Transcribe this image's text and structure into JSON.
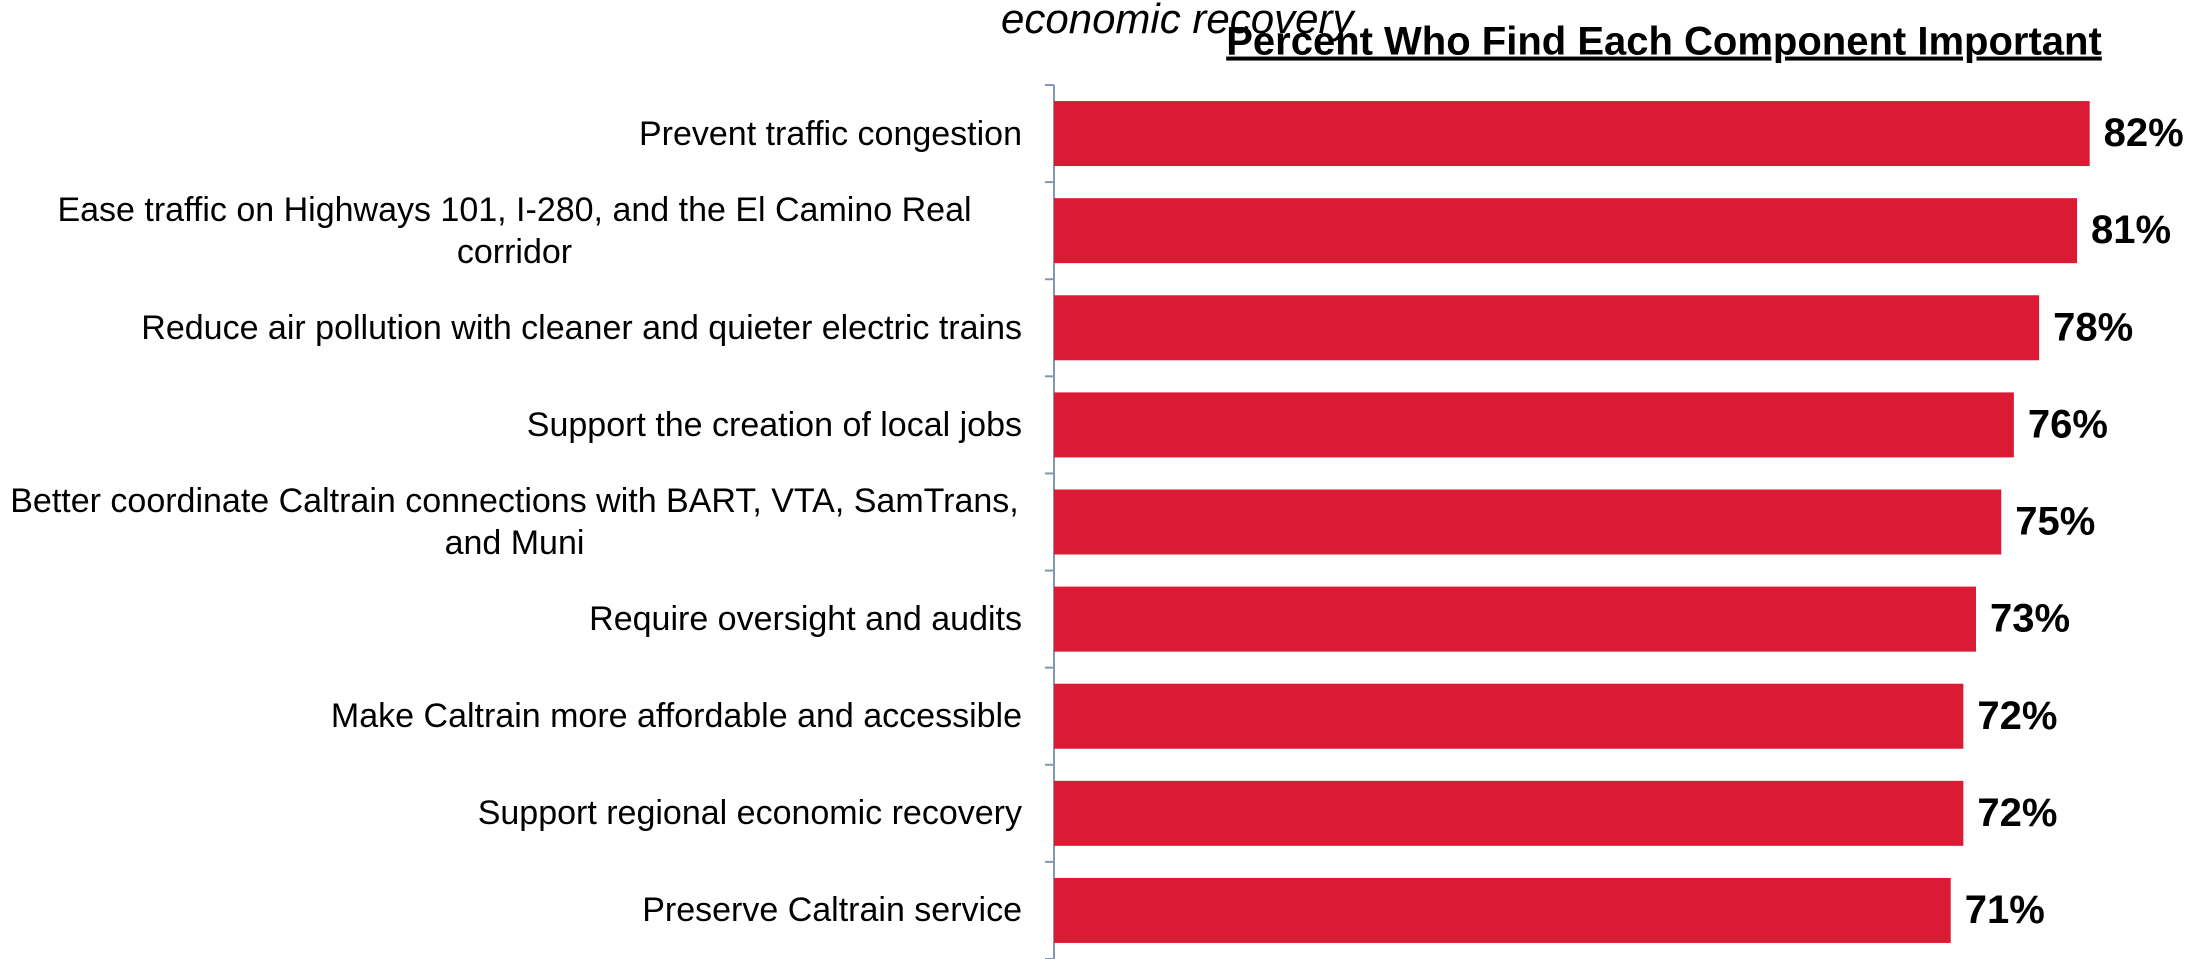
{
  "chart_data": {
    "type": "bar",
    "orientation": "horizontal",
    "title": "Percent Who Find Each Component Important",
    "annotation": "economic recovery",
    "categories": [
      "Prevent traffic congestion",
      "Ease traffic on Highways 101, I-280, and the El Camino Real corridor",
      "Reduce air pollution with cleaner and quieter electric trains",
      "Support the creation of local jobs",
      "Better coordinate Caltrain connections with BART, VTA, SamTrans, and Muni",
      "Require oversight and audits",
      "Make Caltrain more affordable and accessible",
      "Support regional economic recovery",
      "Preserve Caltrain service"
    ],
    "values": [
      82,
      81,
      78,
      76,
      75,
      73,
      72,
      72,
      71
    ],
    "value_labels": [
      "82%",
      "81%",
      "78%",
      "76%",
      "75%",
      "73%",
      "72%",
      "72%",
      "71%"
    ],
    "color": "#da1b33",
    "xlim": [
      0,
      100
    ]
  }
}
